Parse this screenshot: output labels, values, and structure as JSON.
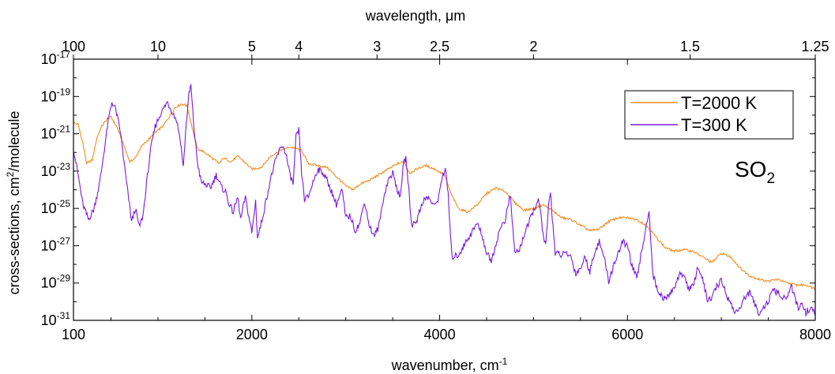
{
  "chart_data": {
    "type": "line",
    "xlabel": "wavenumber, cm",
    "xlabel_sup": "-1",
    "ylabel": "cross-sections, cm",
    "ylabel_sup": "2",
    "ylabel_rest": "/molecule",
    "top_axis_label": "wavelength, μm",
    "xlim": [
      100,
      8000
    ],
    "ylim_exp": [
      -31,
      -17
    ],
    "yscale": "log",
    "x_ticks": [
      {
        "value": 100,
        "label": "100"
      },
      {
        "value": 2000,
        "label": "2000"
      },
      {
        "value": 4000,
        "label": "4000"
      },
      {
        "value": 6000,
        "label": "6000"
      },
      {
        "value": 8000,
        "label": "8000"
      }
    ],
    "y_ticks": [
      {
        "exp": -31,
        "base": "10",
        "sup": "-31"
      },
      {
        "exp": -29,
        "base": "10",
        "sup": "-29"
      },
      {
        "exp": -27,
        "base": "10",
        "sup": "-27"
      },
      {
        "exp": -25,
        "base": "10",
        "sup": "-25"
      },
      {
        "exp": -23,
        "base": "10",
        "sup": "-23"
      },
      {
        "exp": -21,
        "base": "10",
        "sup": "-21"
      },
      {
        "exp": -19,
        "base": "10",
        "sup": "-19"
      },
      {
        "exp": -17,
        "base": "10",
        "sup": "-17"
      }
    ],
    "top_ticks": [
      {
        "wavenumber": 100,
        "label": "100"
      },
      {
        "wavenumber": 1000,
        "label": "10"
      },
      {
        "wavenumber": 2000,
        "label": "5"
      },
      {
        "wavenumber": 2500,
        "label": "4"
      },
      {
        "wavenumber": 3333,
        "label": "3"
      },
      {
        "wavenumber": 4000,
        "label": "2.5"
      },
      {
        "wavenumber": 5000,
        "label": "2"
      },
      {
        "wavenumber": 6667,
        "label": "1.5"
      },
      {
        "wavenumber": 8000,
        "label": "1.25"
      }
    ],
    "legend_position": "top-right",
    "annotation": {
      "text": "SO",
      "sub": "2"
    },
    "series": [
      {
        "name": "T=2000 K",
        "color": "#f28c1e",
        "points": [
          [
            100,
            -20.4
          ],
          [
            150,
            -20.5
          ],
          [
            200,
            -21.5
          ],
          [
            240,
            -22.6
          ],
          [
            300,
            -22.4
          ],
          [
            350,
            -21.2
          ],
          [
            400,
            -20.6
          ],
          [
            460,
            -20.2
          ],
          [
            500,
            -20.1
          ],
          [
            560,
            -20.6
          ],
          [
            620,
            -21.4
          ],
          [
            700,
            -22.5
          ],
          [
            760,
            -22.3
          ],
          [
            820,
            -21.7
          ],
          [
            900,
            -21.3
          ],
          [
            980,
            -20.9
          ],
          [
            1050,
            -20.6
          ],
          [
            1120,
            -20.1
          ],
          [
            1180,
            -19.6
          ],
          [
            1250,
            -19.4
          ],
          [
            1310,
            -19.5
          ],
          [
            1360,
            -20.6
          ],
          [
            1420,
            -21.8
          ],
          [
            1500,
            -22.0
          ],
          [
            1600,
            -22.4
          ],
          [
            1650,
            -22.6
          ],
          [
            1700,
            -22.3
          ],
          [
            1780,
            -22.5
          ],
          [
            1850,
            -22.2
          ],
          [
            1920,
            -22.5
          ],
          [
            2000,
            -22.9
          ],
          [
            2100,
            -22.8
          ],
          [
            2200,
            -22.2
          ],
          [
            2300,
            -21.9
          ],
          [
            2400,
            -21.7
          ],
          [
            2480,
            -21.8
          ],
          [
            2530,
            -21.9
          ],
          [
            2600,
            -22.6
          ],
          [
            2700,
            -22.7
          ],
          [
            2800,
            -22.8
          ],
          [
            2900,
            -23.3
          ],
          [
            3000,
            -23.8
          ],
          [
            3080,
            -24.0
          ],
          [
            3150,
            -23.7
          ],
          [
            3250,
            -23.5
          ],
          [
            3350,
            -23.2
          ],
          [
            3450,
            -22.9
          ],
          [
            3550,
            -22.6
          ],
          [
            3620,
            -22.5
          ],
          [
            3680,
            -23.1
          ],
          [
            3750,
            -22.9
          ],
          [
            3850,
            -22.7
          ],
          [
            3950,
            -22.9
          ],
          [
            4050,
            -23.2
          ],
          [
            4120,
            -24.2
          ],
          [
            4200,
            -25.0
          ],
          [
            4300,
            -25.2
          ],
          [
            4400,
            -24.8
          ],
          [
            4500,
            -24.2
          ],
          [
            4600,
            -23.9
          ],
          [
            4700,
            -24.1
          ],
          [
            4800,
            -24.7
          ],
          [
            4900,
            -25.1
          ],
          [
            5000,
            -25.0
          ],
          [
            5100,
            -24.8
          ],
          [
            5200,
            -25.1
          ],
          [
            5300,
            -25.5
          ],
          [
            5400,
            -25.6
          ],
          [
            5500,
            -25.9
          ],
          [
            5600,
            -26.2
          ],
          [
            5700,
            -26.1
          ],
          [
            5800,
            -25.7
          ],
          [
            5900,
            -25.5
          ],
          [
            6000,
            -25.5
          ],
          [
            6100,
            -25.6
          ],
          [
            6200,
            -25.9
          ],
          [
            6300,
            -26.5
          ],
          [
            6400,
            -27.1
          ],
          [
            6500,
            -27.3
          ],
          [
            6600,
            -27.2
          ],
          [
            6700,
            -27.3
          ],
          [
            6800,
            -27.6
          ],
          [
            6900,
            -27.9
          ],
          [
            7000,
            -27.4
          ],
          [
            7100,
            -27.6
          ],
          [
            7200,
            -28.2
          ],
          [
            7300,
            -28.6
          ],
          [
            7400,
            -28.8
          ],
          [
            7500,
            -28.9
          ],
          [
            7600,
            -28.8
          ],
          [
            7700,
            -29.0
          ],
          [
            7800,
            -29.1
          ],
          [
            7900,
            -29.1
          ],
          [
            8000,
            -29.3
          ]
        ]
      },
      {
        "name": "T=300 K",
        "color": "#7a1be0",
        "points": [
          [
            100,
            -21.8
          ],
          [
            150,
            -23.2
          ],
          [
            200,
            -24.8
          ],
          [
            260,
            -25.6
          ],
          [
            320,
            -25.0
          ],
          [
            380,
            -23.6
          ],
          [
            430,
            -21.8
          ],
          [
            470,
            -20.3
          ],
          [
            510,
            -19.3
          ],
          [
            550,
            -19.7
          ],
          [
            600,
            -20.9
          ],
          [
            640,
            -22.6
          ],
          [
            680,
            -24.2
          ],
          [
            720,
            -25.7
          ],
          [
            760,
            -25.0
          ],
          [
            800,
            -26.0
          ],
          [
            840,
            -25.4
          ],
          [
            880,
            -23.6
          ],
          [
            920,
            -21.9
          ],
          [
            970,
            -20.6
          ],
          [
            1030,
            -19.9
          ],
          [
            1100,
            -19.3
          ],
          [
            1150,
            -19.8
          ],
          [
            1200,
            -20.3
          ],
          [
            1240,
            -21.4
          ],
          [
            1270,
            -22.8
          ],
          [
            1300,
            -20.5
          ],
          [
            1330,
            -18.9
          ],
          [
            1350,
            -18.4
          ],
          [
            1380,
            -20.5
          ],
          [
            1420,
            -22.5
          ],
          [
            1460,
            -23.6
          ],
          [
            1500,
            -23.7
          ],
          [
            1560,
            -23.9
          ],
          [
            1620,
            -23.2
          ],
          [
            1680,
            -23.9
          ],
          [
            1720,
            -24.1
          ],
          [
            1760,
            -24.8
          ],
          [
            1800,
            -25.2
          ],
          [
            1850,
            -24.4
          ],
          [
            1880,
            -25.6
          ],
          [
            1930,
            -24.4
          ],
          [
            2000,
            -26.3
          ],
          [
            2040,
            -24.6
          ],
          [
            2060,
            -26.6
          ],
          [
            2100,
            -25.8
          ],
          [
            2150,
            -24.6
          ],
          [
            2200,
            -23.4
          ],
          [
            2260,
            -22.3
          ],
          [
            2320,
            -21.6
          ],
          [
            2360,
            -22.0
          ],
          [
            2400,
            -23.1
          ],
          [
            2440,
            -23.7
          ],
          [
            2470,
            -21.2
          ],
          [
            2500,
            -20.8
          ],
          [
            2530,
            -23.1
          ],
          [
            2560,
            -24.5
          ],
          [
            2600,
            -24.4
          ],
          [
            2650,
            -23.6
          ],
          [
            2700,
            -22.9
          ],
          [
            2760,
            -23.1
          ],
          [
            2800,
            -23.5
          ],
          [
            2850,
            -24.1
          ],
          [
            2900,
            -24.8
          ],
          [
            2960,
            -24.0
          ],
          [
            3000,
            -25.5
          ],
          [
            3050,
            -25.4
          ],
          [
            3100,
            -26.2
          ],
          [
            3150,
            -25.8
          ],
          [
            3200,
            -24.6
          ],
          [
            3250,
            -25.9
          ],
          [
            3300,
            -26.5
          ],
          [
            3350,
            -26.0
          ],
          [
            3400,
            -24.5
          ],
          [
            3450,
            -23.5
          ],
          [
            3500,
            -23.1
          ],
          [
            3540,
            -23.8
          ],
          [
            3580,
            -24.5
          ],
          [
            3610,
            -22.7
          ],
          [
            3640,
            -22.3
          ],
          [
            3670,
            -23.9
          ],
          [
            3700,
            -25.9
          ],
          [
            3760,
            -25.6
          ],
          [
            3820,
            -24.6
          ],
          [
            3880,
            -24.4
          ],
          [
            3940,
            -24.9
          ],
          [
            3990,
            -24.4
          ],
          [
            4020,
            -23.4
          ],
          [
            4060,
            -22.9
          ],
          [
            4090,
            -24.2
          ],
          [
            4110,
            -26.0
          ],
          [
            4130,
            -27.6
          ],
          [
            4200,
            -27.5
          ],
          [
            4280,
            -26.8
          ],
          [
            4350,
            -26.2
          ],
          [
            4400,
            -25.8
          ],
          [
            4450,
            -26.4
          ],
          [
            4500,
            -27.4
          ],
          [
            4550,
            -27.8
          ],
          [
            4600,
            -26.9
          ],
          [
            4650,
            -26.0
          ],
          [
            4700,
            -25.6
          ],
          [
            4750,
            -24.3
          ],
          [
            4780,
            -26.1
          ],
          [
            4800,
            -27.4
          ],
          [
            4850,
            -27.2
          ],
          [
            4900,
            -26.4
          ],
          [
            4950,
            -25.8
          ],
          [
            5000,
            -25.1
          ],
          [
            5050,
            -24.6
          ],
          [
            5080,
            -25.3
          ],
          [
            5100,
            -26.4
          ],
          [
            5130,
            -27.0
          ],
          [
            5160,
            -24.9
          ],
          [
            5180,
            -24.1
          ],
          [
            5200,
            -25.5
          ],
          [
            5230,
            -27.4
          ],
          [
            5300,
            -27.5
          ],
          [
            5350,
            -27.4
          ],
          [
            5400,
            -27.6
          ],
          [
            5450,
            -28.5
          ],
          [
            5500,
            -28.2
          ],
          [
            5550,
            -27.6
          ],
          [
            5600,
            -28.4
          ],
          [
            5650,
            -27.3
          ],
          [
            5700,
            -26.8
          ],
          [
            5750,
            -27.6
          ],
          [
            5800,
            -28.9
          ],
          [
            5850,
            -28.1
          ],
          [
            5900,
            -27.4
          ],
          [
            5950,
            -26.8
          ],
          [
            6000,
            -27.0
          ],
          [
            6050,
            -28.1
          ],
          [
            6100,
            -28.8
          ],
          [
            6150,
            -27.3
          ],
          [
            6200,
            -26.0
          ],
          [
            6230,
            -25.0
          ],
          [
            6250,
            -26.9
          ],
          [
            6270,
            -28.5
          ],
          [
            6320,
            -29.4
          ],
          [
            6400,
            -29.9
          ],
          [
            6450,
            -29.6
          ],
          [
            6500,
            -29.2
          ],
          [
            6550,
            -28.6
          ],
          [
            6600,
            -28.5
          ],
          [
            6650,
            -29.3
          ],
          [
            6700,
            -29.2
          ],
          [
            6750,
            -28.1
          ],
          [
            6800,
            -28.8
          ],
          [
            6850,
            -29.9
          ],
          [
            6900,
            -29.8
          ],
          [
            6950,
            -29.2
          ],
          [
            7000,
            -28.8
          ],
          [
            7050,
            -29.6
          ],
          [
            7100,
            -30.1
          ],
          [
            7150,
            -30.6
          ],
          [
            7200,
            -30.3
          ],
          [
            7250,
            -29.8
          ],
          [
            7300,
            -29.5
          ],
          [
            7350,
            -30.1
          ],
          [
            7400,
            -30.6
          ],
          [
            7450,
            -30.3
          ],
          [
            7500,
            -30.0
          ],
          [
            7550,
            -29.4
          ],
          [
            7600,
            -29.5
          ],
          [
            7650,
            -29.9
          ],
          [
            7700,
            -29.7
          ],
          [
            7750,
            -29.2
          ],
          [
            7780,
            -29.8
          ],
          [
            7820,
            -30.4
          ],
          [
            7860,
            -30.1
          ],
          [
            7900,
            -30.6
          ],
          [
            7950,
            -30.3
          ],
          [
            8000,
            -30.7
          ]
        ]
      }
    ]
  }
}
